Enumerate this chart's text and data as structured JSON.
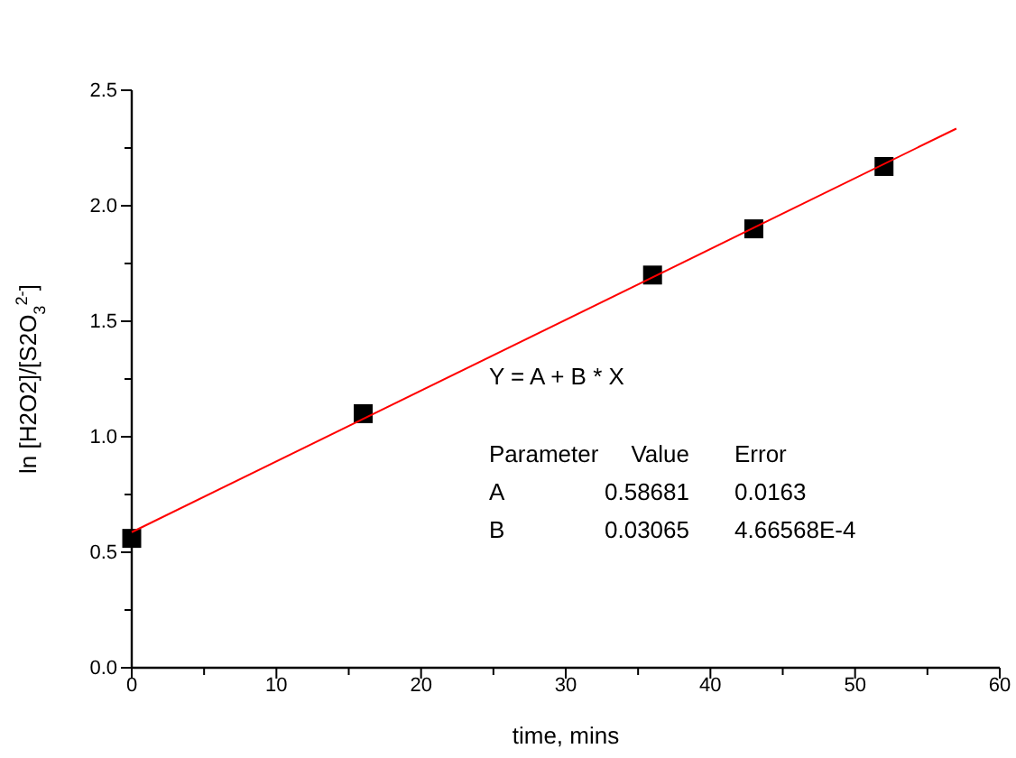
{
  "chart_data": {
    "type": "scatter",
    "xlabel": "time, mins",
    "ylabel": "ln [H2O2]/[S2O$_{3}$$^{2-}$]",
    "xlim": [
      0,
      60
    ],
    "ylim": [
      0,
      2.5
    ],
    "xticks": [
      0,
      {
        "value": 5,
        "label": null
      },
      10,
      {
        "value": 15,
        "label": null
      },
      20,
      {
        "value": 25,
        "label": null
      },
      30,
      {
        "value": 35,
        "label": null
      },
      40,
      {
        "value": 45,
        "label": null
      },
      50,
      {
        "value": 55,
        "label": null
      },
      60
    ],
    "yticks": [
      {
        "value": 0,
        "label": "0.0"
      },
      {
        "value": 0.25,
        "label": null
      },
      {
        "value": 0.5,
        "label": "0.5"
      },
      {
        "value": 0.75,
        "label": null
      },
      {
        "value": 1,
        "label": "1.0"
      },
      {
        "value": 1.25,
        "label": null
      },
      {
        "value": 1.5,
        "label": "1.5"
      },
      {
        "value": 1.75,
        "label": null
      },
      {
        "value": 2,
        "label": "2.0"
      },
      {
        "value": 2.25,
        "label": null
      },
      {
        "value": 2.5,
        "label": "2.5"
      }
    ],
    "grid": false,
    "marker": "square",
    "series": [
      {
        "color": "#000000",
        "x": [
          0,
          16,
          36,
          43,
          52
        ],
        "values": [
          0.56,
          1.1,
          1.7,
          1.9,
          2.17
        ]
      },
      {
        "type": "line",
        "color": "#ff0000",
        "marker": "none",
        "x": [
          0,
          57
        ],
        "values": [
          0.587,
          2.334
        ]
      }
    ],
    "annotations": [
      "Y = A + B * X",
      "Parameter",
      "Value",
      "Error",
      "A",
      "0.58681",
      "0.0163",
      "B",
      "0.03065",
      "4.66568E-4"
    ]
  }
}
